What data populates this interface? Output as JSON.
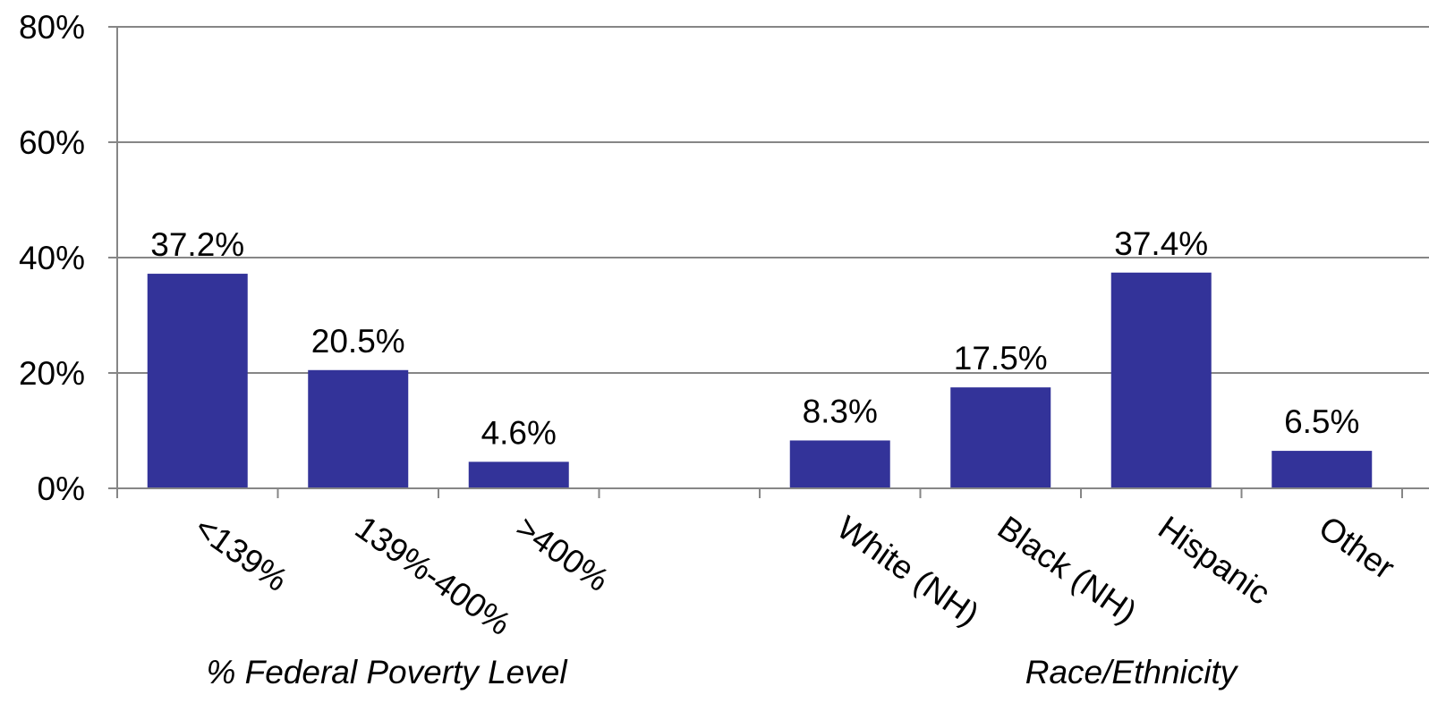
{
  "chart_data": {
    "type": "bar",
    "categories": [
      "<139%",
      "139%-400%",
      ">400%",
      "",
      "White (NH)",
      "Black (NH)",
      "Hispanic",
      "Other"
    ],
    "values": [
      37.2,
      20.5,
      4.6,
      null,
      8.3,
      17.5,
      37.4,
      6.5
    ],
    "data_labels": [
      "37.2%",
      "20.5%",
      "4.6%",
      "",
      "8.3%",
      "17.5%",
      "37.4%",
      "6.5%"
    ],
    "groups": [
      {
        "label": "% Federal Poverty Level",
        "categories": [
          "<139%",
          "139%-400%",
          ">400%"
        ]
      },
      {
        "label": "Race/Ethnicity",
        "categories": [
          "White (NH)",
          "Black (NH)",
          "Hispanic",
          "Other"
        ]
      }
    ],
    "y_ticks": [
      "0%",
      "20%",
      "40%",
      "60%",
      "80%"
    ],
    "y_tick_values": [
      0,
      20,
      40,
      60,
      80
    ],
    "ylim": [
      0,
      80
    ],
    "grid": true,
    "legend": "none",
    "colors": {
      "bar": "#333399",
      "grid": "#868686",
      "axis": "#868686"
    }
  }
}
